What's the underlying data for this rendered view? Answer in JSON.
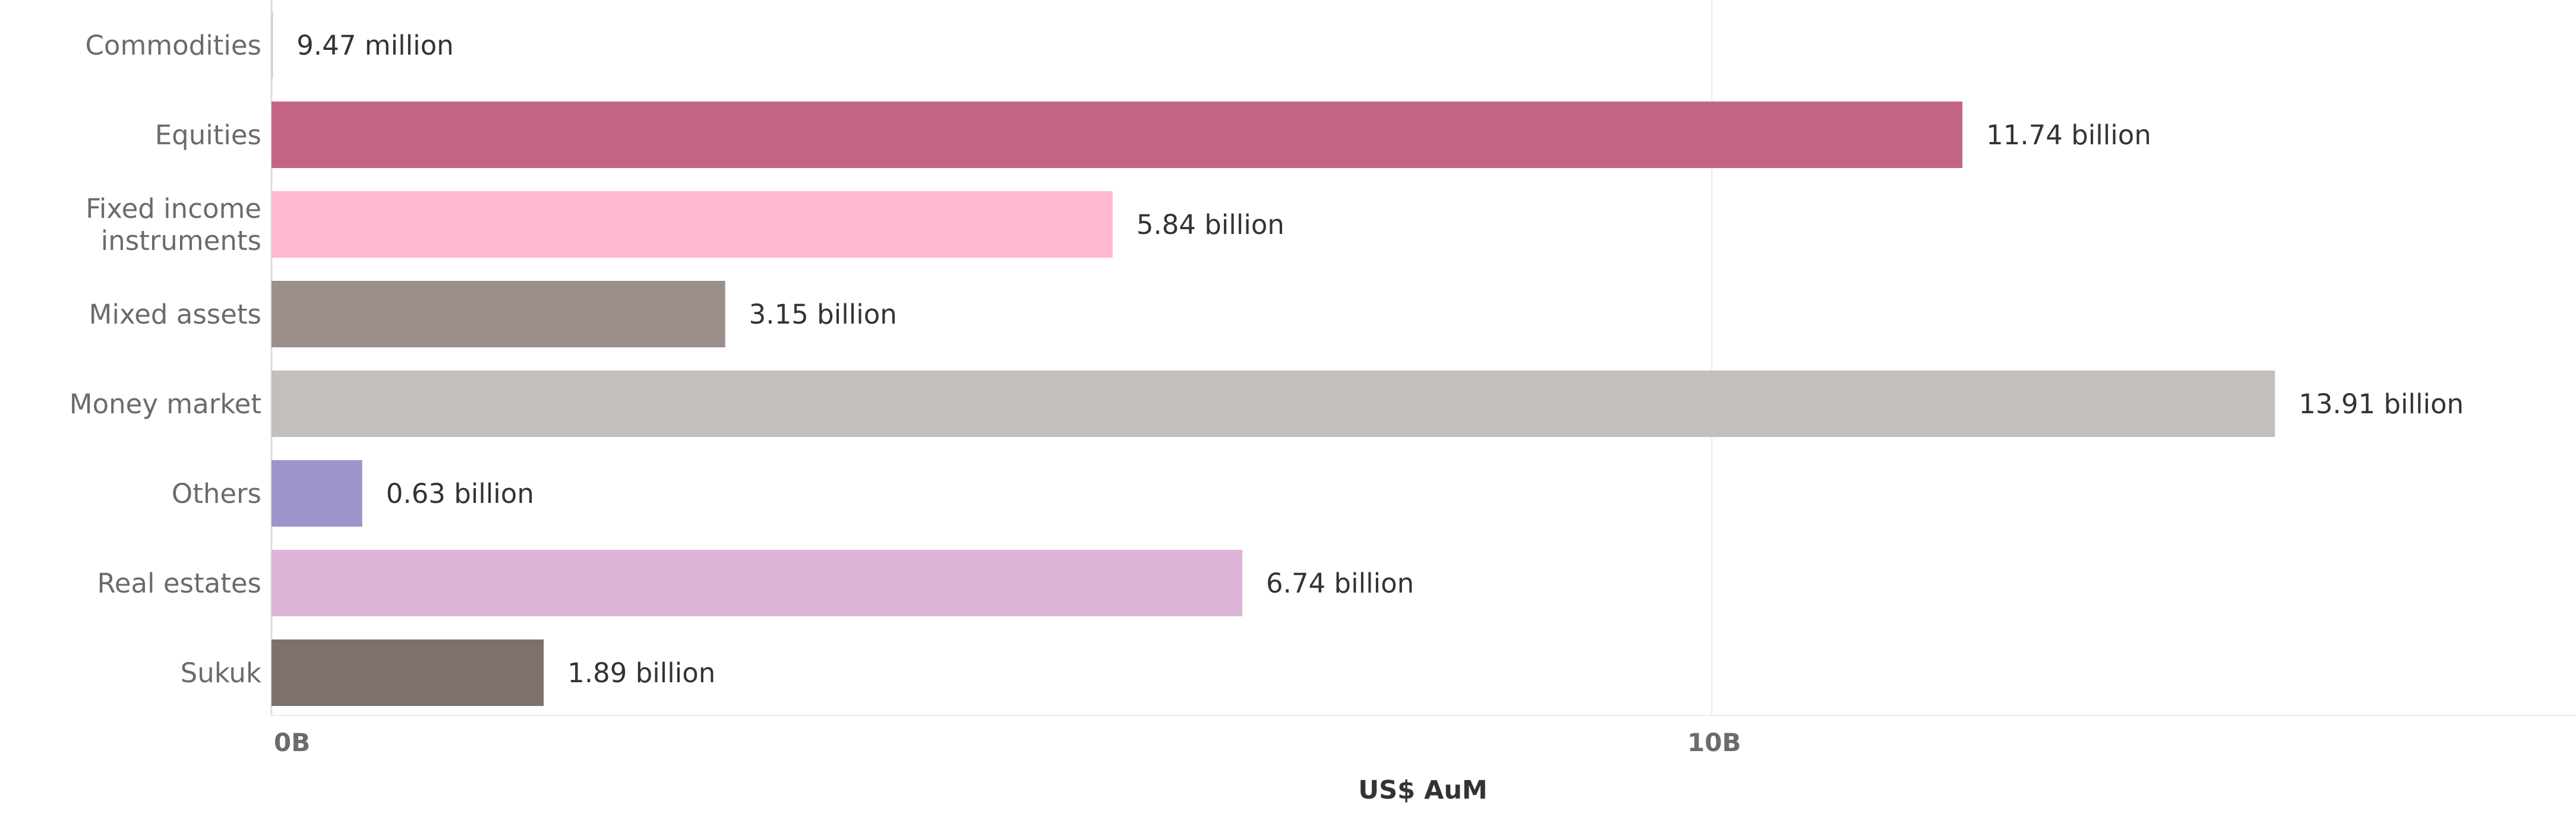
{
  "chart_data": {
    "type": "bar",
    "orientation": "horizontal",
    "categories": [
      "Commodities",
      "Equities",
      "Fixed income instruments",
      "Mixed assets",
      "Money market",
      "Others",
      "Real estates",
      "Sukuk"
    ],
    "category_label_lines": [
      [
        "Commodities"
      ],
      [
        "Equities"
      ],
      [
        "Fixed income",
        "instruments"
      ],
      [
        "Mixed assets"
      ],
      [
        "Money market"
      ],
      [
        "Others"
      ],
      [
        "Real estates"
      ],
      [
        "Sukuk"
      ]
    ],
    "values": [
      0.00947,
      11.74,
      5.84,
      3.15,
      13.91,
      0.63,
      6.74,
      1.89
    ],
    "value_unit": "billion US$",
    "data_labels": [
      "9.47 million",
      "11.74 billion",
      "5.84 billion",
      "3.15 billion",
      "13.91 billion",
      "0.63 billion",
      "6.74 billion",
      "1.89 billion"
    ],
    "colors": [
      "#c9c9c9",
      "#c46484",
      "#ffbad1",
      "#9b8f8c",
      "#c5bfbc",
      "#9e95cb",
      "#dcb5d6",
      "#7d716e"
    ],
    "x_ticks": [
      0,
      10
    ],
    "x_tick_labels": [
      "0B",
      "10B"
    ],
    "xlabel": "US$ AuM",
    "xlim": [
      0,
      16
    ],
    "grid": true,
    "legend": "none"
  }
}
